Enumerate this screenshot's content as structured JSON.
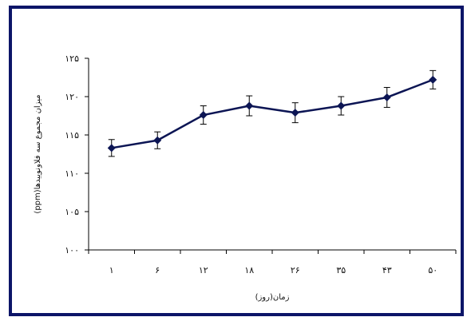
{
  "chart_data": {
    "type": "line",
    "title": "",
    "xlabel": "زمان(روز)",
    "ylabel": "میزان مجموع سه فلاونوییدها(ppm)",
    "categories": [
      "۱",
      "۶",
      "۱۲",
      "۱۸",
      "۲۶",
      "۳۵",
      "۴۳",
      "۵۰"
    ],
    "series": [
      {
        "values": [
          113.3,
          114.3,
          117.6,
          118.8,
          117.9,
          118.8,
          119.9,
          122.2
        ],
        "errors": [
          1.1,
          1.1,
          1.2,
          1.3,
          1.3,
          1.2,
          1.3,
          1.2
        ]
      }
    ],
    "ylim": [
      100,
      125
    ],
    "yticks": [
      100,
      105,
      110,
      115,
      120,
      125
    ],
    "ytick_labels": [
      "۱۰۰",
      "۱۰۵",
      "۱۱۰",
      "۱۱۵",
      "۱۲۰",
      "۱۲۵"
    ],
    "grid": false,
    "legend": "none",
    "colors": {
      "line": "#0c1554",
      "marker": "#0c1554",
      "border": "#0c1568",
      "axis": "#000000"
    }
  }
}
